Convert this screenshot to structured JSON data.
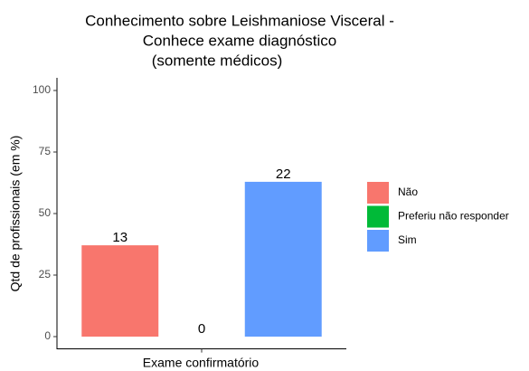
{
  "chart_data": {
    "type": "bar",
    "title": [
      "Conhecimento sobre Leishmaniose Visceral -",
      "Conhece exame diagnóstico",
      "(somente médicos)"
    ],
    "xlabel": "Exame confirmatório",
    "ylabel": "Qtd de profissionais (em %)",
    "categories": [
      "Exame confirmatório"
    ],
    "series": [
      {
        "name": "Não",
        "color": "#F8766D",
        "values": [
          37.1
        ],
        "counts": [
          13
        ]
      },
      {
        "name": "Preferiu não responder",
        "color": "#00BA38",
        "values": [
          0
        ],
        "counts": [
          0
        ]
      },
      {
        "name": "Sim",
        "color": "#619CFF",
        "values": [
          62.9
        ],
        "counts": [
          22
        ]
      }
    ],
    "ylim": [
      -5,
      105
    ],
    "yticks": [
      0,
      25,
      50,
      75,
      100
    ],
    "grid": false,
    "legend": "right"
  }
}
